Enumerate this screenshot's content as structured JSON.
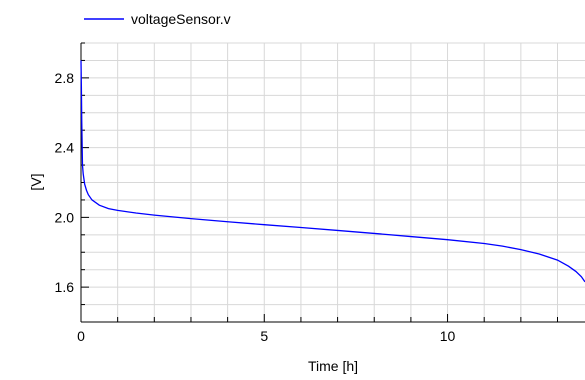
{
  "chart_data": {
    "type": "line",
    "title": "",
    "xlabel": "Time [h]",
    "ylabel": "[V]",
    "xlim": [
      0,
      13.75
    ],
    "ylim": [
      1.4,
      3.0
    ],
    "x_ticks": [
      0,
      5,
      10
    ],
    "x_minor_ticks": [
      1,
      2,
      3,
      4,
      6,
      7,
      8,
      9,
      11,
      12,
      13
    ],
    "y_ticks": [
      1.6,
      2.0,
      2.4,
      2.8
    ],
    "y_tick_labels": [
      "1.6",
      "2.0",
      "2.4",
      "2.8"
    ],
    "grid": true,
    "legend_position": "top-left",
    "colors": {
      "series": "#0000ff",
      "grid": "#d8d8d8",
      "axis": "#000000"
    },
    "series": [
      {
        "name": "voltageSensor.v",
        "x": [
          0,
          0.01,
          0.02,
          0.04,
          0.06,
          0.1,
          0.15,
          0.2,
          0.3,
          0.5,
          0.75,
          1.0,
          1.5,
          2.0,
          3.0,
          4.0,
          5.0,
          6.0,
          7.0,
          8.0,
          9.0,
          10.0,
          11.0,
          11.5,
          12.0,
          12.5,
          13.0,
          13.3,
          13.5,
          13.65,
          13.75
        ],
        "y": [
          2.9,
          2.75,
          2.56,
          2.3,
          2.25,
          2.19,
          2.155,
          2.13,
          2.1,
          2.07,
          2.05,
          2.04,
          2.025,
          2.013,
          1.993,
          1.975,
          1.958,
          1.942,
          1.925,
          1.908,
          1.89,
          1.872,
          1.85,
          1.835,
          1.815,
          1.79,
          1.755,
          1.72,
          1.69,
          1.66,
          1.63
        ]
      }
    ]
  }
}
